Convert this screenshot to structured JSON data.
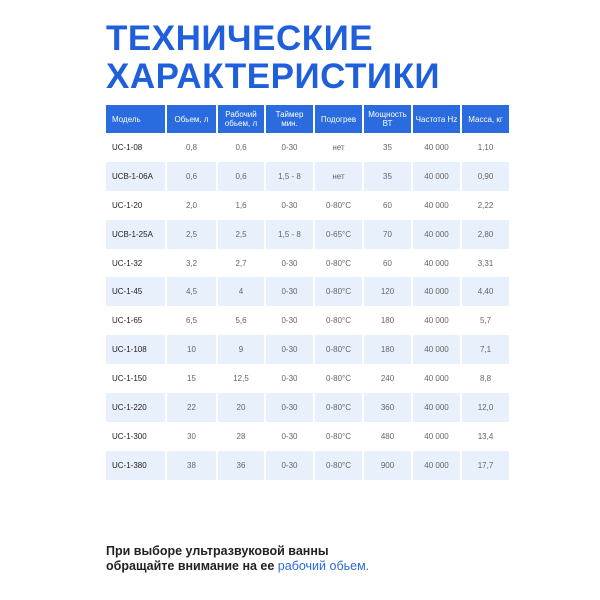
{
  "title": {
    "line1": "ТЕХНИЧЕСКИЕ",
    "line2": "ХАРАКТЕРИСТИКИ"
  },
  "colors": {
    "accent": "#1f5fdc",
    "header_bg": "#2a6be0",
    "row_alt": "#e8f0fc"
  },
  "table": {
    "headers": [
      "Модель",
      "Обьем, л",
      "Рабочий обьем, л",
      "Таймер мин.",
      "Подогрев",
      "Мощность ВТ",
      "Частота Hz",
      "Масса, кг"
    ],
    "rows": [
      [
        "UC-1-08",
        "0,8",
        "0,6",
        "0-30",
        "нет",
        "35",
        "40 000",
        "1,10"
      ],
      [
        "UCB-1-06A",
        "0,6",
        "0,6",
        "1,5 - 8",
        "нет",
        "35",
        "40 000",
        "0,90"
      ],
      [
        "UC-1-20",
        "2,0",
        "1,6",
        "0-30",
        "0-80°C",
        "60",
        "40 000",
        "2,22"
      ],
      [
        "UCB-1-25A",
        "2,5",
        "2,5",
        "1,5 - 8",
        "0-65°C",
        "70",
        "40 000",
        "2,80"
      ],
      [
        "UC-1-32",
        "3,2",
        "2,7",
        "0-30",
        "0-80°C",
        "60",
        "40 000",
        "3,31"
      ],
      [
        "UC-1-45",
        "4,5",
        "4",
        "0-30",
        "0-80°C",
        "120",
        "40 000",
        "4,40"
      ],
      [
        "UC-1-65",
        "6,5",
        "5,6",
        "0-30",
        "0-80°C",
        "180",
        "40 000",
        "5,7"
      ],
      [
        "UC-1-108",
        "10",
        "9",
        "0-30",
        "0-80°C",
        "180",
        "40 000",
        "7,1"
      ],
      [
        "UC-1-150",
        "15",
        "12,5",
        "0-30",
        "0-80°C",
        "240",
        "40 000",
        "8,8"
      ],
      [
        "UC-1-220",
        "22",
        "20",
        "0-30",
        "0-80°C",
        "360",
        "40 000",
        "12,0"
      ],
      [
        "UC-1-300",
        "30",
        "28",
        "0-30",
        "0-80°C",
        "480",
        "40 000",
        "13,4"
      ],
      [
        "UC-1-380",
        "38",
        "36",
        "0-30",
        "0-80°C",
        "900",
        "40 000",
        "17,7"
      ]
    ]
  },
  "footer": {
    "line1": "При выборе ультразвуковой ванны",
    "line2_prefix": "обращайте внимание на ее ",
    "line2_highlight": "рабочий обьем."
  }
}
